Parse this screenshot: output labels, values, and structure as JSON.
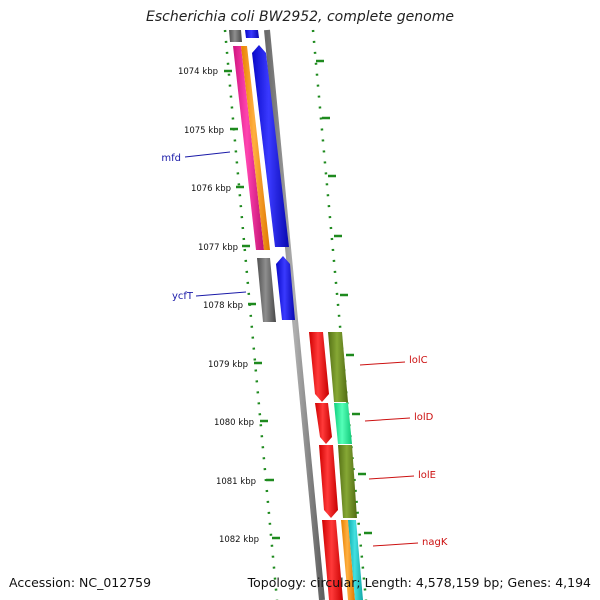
{
  "title": "Escherichia coli BW2952, complete genome",
  "footer": {
    "accession": "Accession: NC_012759",
    "topology": "Topology: circular; Length: 4,578,159 bp; Genes: 4,194"
  },
  "ruler_labels": [
    "1074 kbp",
    "1075 kbp",
    "1076 kbp",
    "1077 kbp",
    "1078 kbp",
    "1079 kbp",
    "1080 kbp",
    "1081 kbp",
    "1082 kbp"
  ],
  "gene_labels": {
    "mfd": "mfd",
    "ycfT": "ycfT",
    "lolC": "lolC",
    "lolD": "lolD",
    "lolE": "lolE",
    "nagK": "nagK"
  },
  "colors": {
    "left_label": "#1a1aa8",
    "right_label": "#cc1111",
    "ruler_tick": "#1e8a1e",
    "backbone": "#8a8a8a",
    "blue": "#1212ee",
    "magenta": "#ee2299",
    "orange": "#ff9911",
    "gray": "#707070",
    "red": "#ee1111",
    "olive": "#6f8f22",
    "mint": "#22ee99",
    "cyan": "#22cccc"
  }
}
